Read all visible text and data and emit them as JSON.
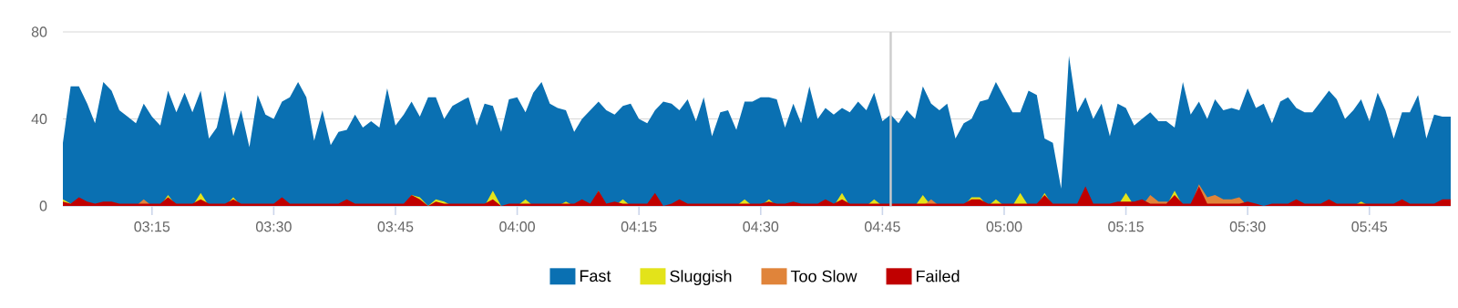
{
  "chart_data": {
    "type": "area",
    "x": [
      3.067,
      3.083,
      3.1,
      3.117,
      3.133,
      3.15,
      3.167,
      3.183,
      3.2,
      3.217,
      3.233,
      3.25,
      3.267,
      3.283,
      3.3,
      3.317,
      3.333,
      3.35,
      3.367,
      3.383,
      3.4,
      3.417,
      3.433,
      3.45,
      3.467,
      3.483,
      3.5,
      3.517,
      3.533,
      3.55,
      3.567,
      3.583,
      3.6,
      3.617,
      3.633,
      3.65,
      3.667,
      3.683,
      3.7,
      3.717,
      3.733,
      3.75,
      3.767,
      3.783,
      3.8,
      3.817,
      3.833,
      3.85,
      3.867,
      3.883,
      3.9,
      3.917,
      3.933,
      3.95,
      3.967,
      3.983,
      4,
      4.017,
      4.033,
      4.05,
      4.067,
      4.083,
      4.1,
      4.117,
      4.133,
      4.15,
      4.167,
      4.183,
      4.2,
      4.217,
      4.233,
      4.25,
      4.267,
      4.283,
      4.3,
      4.317,
      4.333,
      4.35,
      4.367,
      4.383,
      4.4,
      4.417,
      4.433,
      4.45,
      4.467,
      4.483,
      4.5,
      4.517,
      4.533,
      4.55,
      4.567,
      4.583,
      4.6,
      4.617,
      4.633,
      4.65,
      4.667,
      4.683,
      4.7,
      4.717,
      4.733,
      4.75,
      4.767,
      4.783,
      4.8,
      4.817,
      4.833,
      4.85,
      4.867,
      4.883,
      4.9,
      4.917,
      4.933,
      4.95,
      4.967,
      4.983,
      5,
      5.017,
      5.033,
      5.05,
      5.067,
      5.083,
      5.1,
      5.117,
      5.133,
      5.15,
      5.167,
      5.183,
      5.2,
      5.217,
      5.233,
      5.25,
      5.267,
      5.283,
      5.3,
      5.317,
      5.333,
      5.35,
      5.367,
      5.383,
      5.4,
      5.417,
      5.433,
      5.45,
      5.467,
      5.483,
      5.5,
      5.517,
      5.533,
      5.55,
      5.567,
      5.583,
      5.6,
      5.617,
      5.633,
      5.65,
      5.667,
      5.683,
      5.7,
      5.717,
      5.733,
      5.75,
      5.767,
      5.783,
      5.8,
      5.817,
      5.833,
      5.85,
      5.867,
      5.883,
      5.9,
      5.917
    ],
    "series": [
      {
        "name": "Fast",
        "color": "#0a70b2",
        "values": [
          29,
          55,
          55,
          47,
          38,
          57,
          53,
          44,
          41,
          38,
          47,
          41,
          37,
          53,
          43,
          52,
          43,
          53,
          31,
          36,
          53,
          32,
          44,
          27,
          51,
          42,
          40,
          48,
          50,
          57,
          50,
          30,
          44,
          28,
          34,
          35,
          42,
          36,
          39,
          36,
          54,
          37,
          42,
          48,
          41,
          50,
          50,
          40,
          46,
          48,
          50,
          37,
          47,
          46,
          34,
          49,
          50,
          43,
          52,
          57,
          47,
          45,
          44,
          34,
          40,
          44,
          48,
          44,
          42,
          46,
          47,
          40,
          38,
          44,
          48,
          47,
          44,
          49,
          39,
          50,
          32,
          43,
          44,
          35,
          48,
          48,
          50,
          50,
          49,
          36,
          47,
          38,
          55,
          40,
          45,
          42,
          45,
          43,
          48,
          44,
          52,
          39,
          42,
          38,
          44,
          40,
          55,
          47,
          44,
          47,
          31,
          38,
          40,
          48,
          49,
          57,
          50,
          43,
          43,
          53,
          51,
          31,
          29,
          8,
          69,
          43,
          50,
          40,
          47,
          32,
          47,
          45,
          37,
          40,
          43,
          39,
          39,
          36,
          57,
          42,
          48,
          40,
          49,
          44,
          45,
          44,
          54,
          45,
          47,
          38,
          48,
          50,
          45,
          43,
          43,
          48,
          53,
          49,
          40,
          44,
          49,
          39,
          52,
          44,
          31,
          43,
          43,
          51,
          31,
          42,
          41,
          41
        ]
      },
      {
        "name": "Sluggish",
        "color": "#e3e31a",
        "x": [
          3.067,
          3.083,
          3.1,
          3.267,
          3.283,
          3.3,
          3.333,
          3.35,
          3.367,
          3.4,
          3.417,
          3.433,
          3.767,
          3.783,
          3.8,
          3.817,
          3.833,
          3.85,
          3.867,
          3.933,
          3.95,
          3.967,
          4,
          4.017,
          4.033,
          4.083,
          4.1,
          4.117,
          4.15,
          4.167,
          4.183,
          4.2,
          4.217,
          4.233,
          4.45,
          4.467,
          4.483,
          4.5,
          4.517,
          4.533,
          4.65,
          4.667,
          4.683,
          4.717,
          4.733,
          4.75,
          4.817,
          4.833,
          4.85,
          4.917,
          4.933,
          4.95,
          4.967,
          4.983,
          5,
          5.017,
          5.033,
          5.05,
          5.067,
          5.083,
          5.1,
          5.233,
          5.25,
          5.267,
          5.333,
          5.35,
          5.367,
          5.717,
          5.733,
          5.75,
          5.917
        ],
        "values": [
          3,
          1,
          0,
          0,
          5,
          0,
          0,
          6,
          0,
          0,
          4,
          0,
          0,
          5,
          4,
          0,
          3,
          2,
          0,
          0,
          7,
          0,
          0,
          3,
          0,
          0,
          2,
          0,
          0,
          7,
          0,
          0,
          3,
          0,
          0,
          3,
          0,
          0,
          3,
          0,
          0,
          6,
          0,
          0,
          3,
          0,
          0,
          5,
          0,
          0,
          4,
          4,
          0,
          3,
          0,
          0,
          6,
          0,
          0,
          6,
          0,
          0,
          6,
          0,
          0,
          7,
          0,
          0,
          2,
          0,
          0
        ]
      },
      {
        "name": "Too Slow",
        "color": "#e0843a",
        "x": [
          3.067,
          3.217,
          3.233,
          3.25,
          4.833,
          4.85,
          4.867,
          5.283,
          5.3,
          5.317,
          5.333,
          5.383,
          5.4,
          5.417,
          5.433,
          5.45,
          5.467,
          5.483,
          5.5,
          5.917
        ],
        "values": [
          0,
          0,
          3,
          0,
          0,
          3,
          0,
          0,
          5,
          2,
          2,
          0,
          10,
          4,
          5,
          3,
          3,
          4,
          0,
          0
        ]
      },
      {
        "name": "Failed",
        "color": "#c00000",
        "x": [
          3.067,
          3.083,
          3.1,
          3.117,
          3.133,
          3.15,
          3.167,
          3.183,
          3.267,
          3.283,
          3.3,
          3.333,
          3.35,
          3.367,
          3.4,
          3.417,
          3.433,
          3.5,
          3.517,
          3.533,
          3.633,
          3.65,
          3.667,
          3.767,
          3.783,
          3.8,
          3.817,
          3.833,
          3.85,
          3.933,
          3.95,
          3.967,
          3.983,
          4.117,
          4.133,
          4.15,
          4.167,
          4.183,
          4.2,
          4.217,
          4.267,
          4.283,
          4.3,
          4.317,
          4.333,
          4.35,
          4.5,
          4.517,
          4.533,
          4.55,
          4.567,
          4.583,
          4.617,
          4.633,
          4.65,
          4.667,
          4.683,
          4.917,
          4.933,
          4.95,
          4.967,
          5.067,
          5.083,
          5.1,
          5.15,
          5.167,
          5.183,
          5.217,
          5.233,
          5.25,
          5.267,
          5.283,
          5.3,
          5.333,
          5.35,
          5.367,
          5.383,
          5.4,
          5.417,
          5.483,
          5.5,
          5.517,
          5.533,
          5.55,
          5.583,
          5.6,
          5.617,
          5.65,
          5.667,
          5.683,
          5.8,
          5.817,
          5.833,
          5.883,
          5.9,
          5.917
        ],
        "values": [
          2,
          1,
          4,
          2,
          1,
          2,
          2,
          1,
          1,
          4,
          1,
          1,
          3,
          1,
          1,
          3,
          1,
          1,
          4,
          1,
          1,
          3,
          1,
          1,
          5,
          3,
          0,
          2,
          1,
          1,
          3,
          0,
          1,
          1,
          3,
          1,
          7,
          1,
          2,
          1,
          1,
          6,
          0,
          1,
          3,
          1,
          1,
          2,
          1,
          1,
          2,
          1,
          1,
          3,
          1,
          3,
          1,
          1,
          3,
          3,
          1,
          1,
          5,
          1,
          1,
          9,
          1,
          1,
          2,
          2,
          2,
          3,
          1,
          1,
          5,
          1,
          1,
          9,
          1,
          1,
          2,
          1,
          0,
          1,
          1,
          3,
          1,
          1,
          3,
          1,
          1,
          3,
          1,
          1,
          3,
          3
        ]
      }
    ],
    "xlim": [
      3.067,
      5.917
    ],
    "ylim": [
      0,
      80
    ],
    "xticks": [
      {
        "value": 3.25,
        "label": "03:15"
      },
      {
        "value": 3.5,
        "label": "03:30"
      },
      {
        "value": 3.75,
        "label": "03:45"
      },
      {
        "value": 4,
        "label": "04:00"
      },
      {
        "value": 4.25,
        "label": "04:15"
      },
      {
        "value": 4.5,
        "label": "04:30"
      },
      {
        "value": 4.75,
        "label": "04:45"
      },
      {
        "value": 5,
        "label": "05:00"
      },
      {
        "value": 5.25,
        "label": "05:15"
      },
      {
        "value": 5.5,
        "label": "05:30"
      },
      {
        "value": 5.75,
        "label": "05:45"
      }
    ],
    "yticks": [
      0,
      40,
      80
    ],
    "grid": "y",
    "legend": "bottom",
    "ref_lines": [
      {
        "axis": "x",
        "value": 4.767,
        "color": "#cccccc"
      }
    ]
  }
}
